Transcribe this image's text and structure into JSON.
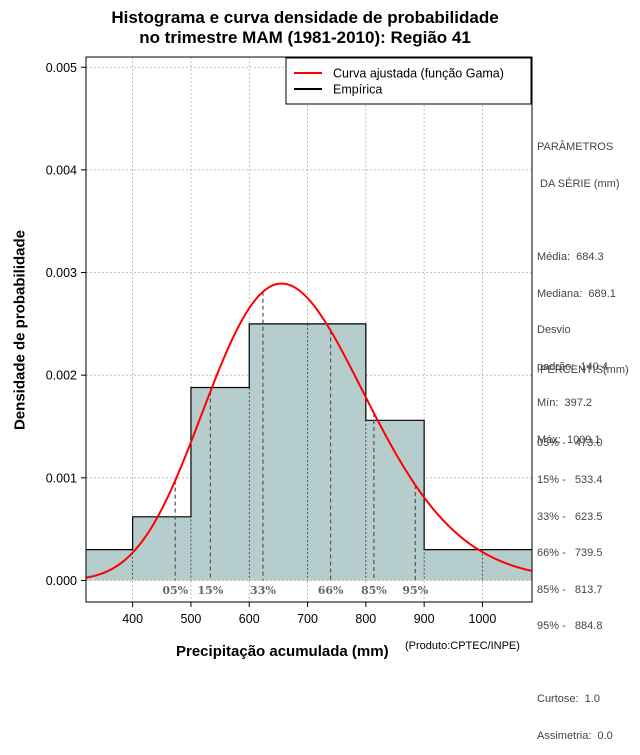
{
  "chart_data": {
    "type": "histogram",
    "title": [
      "Histograma e curva densidade de probabilidade",
      "no trimestre MAM (1981-2010): Região 41"
    ],
    "xlabel": "Precipitação acumulada (mm)",
    "ylabel": "Densidade de probabilidade",
    "credit": "(Produto:CPTEC/INPE)",
    "xlim": [
      320,
      1085
    ],
    "ylim": [
      -0.00021,
      0.0051
    ],
    "x_ticks": [
      400,
      500,
      600,
      700,
      800,
      900,
      1000
    ],
    "y_ticks": [
      0.0,
      0.001,
      0.002,
      0.003,
      0.004,
      0.005
    ],
    "y_tick_labels": [
      "0.000",
      "0.001",
      "0.002",
      "0.003",
      "0.004",
      "0.005"
    ],
    "bins": [
      {
        "x0": 300,
        "x1": 400,
        "density": 0.0003
      },
      {
        "x0": 400,
        "x1": 500,
        "density": 0.00062
      },
      {
        "x0": 500,
        "x1": 600,
        "density": 0.00188
      },
      {
        "x0": 600,
        "x1": 700,
        "density": 0.0025
      },
      {
        "x0": 700,
        "x1": 800,
        "density": 0.0025
      },
      {
        "x0": 800,
        "x1": 900,
        "density": 0.00156
      },
      {
        "x0": 900,
        "x1": 1000,
        "density": 0.0003
      },
      {
        "x0": 1000,
        "x1": 1100,
        "density": 0.0003
      }
    ],
    "gamma_fit": {
      "mean": 684.3,
      "sd": 140.4
    },
    "percentile_markers": [
      {
        "label": "05%",
        "x": 473.0
      },
      {
        "label": "15%",
        "x": 533.4
      },
      {
        "label": "33%",
        "x": 623.5
      },
      {
        "label": "66%",
        "x": 739.5
      },
      {
        "label": "85%",
        "x": 813.7
      },
      {
        "label": "95%",
        "x": 884.8
      }
    ],
    "legend": [
      {
        "label": "Curva ajustada (função Gama)",
        "color": "#ff0000"
      },
      {
        "label": "Empírica",
        "color": "#000000"
      }
    ],
    "bar_fill": "#b5cdcd",
    "curve_color": "#ff0000",
    "grid": true
  },
  "parametros": {
    "header": [
      "PARÂMETROS",
      " DA SÉRIE (mm)"
    ],
    "lines": [
      "Média:  684.3",
      "Mediana:  689.1",
      "Desvio",
      "padrão:  140.4",
      "Mín:  397.2",
      "Máx:  1009.1"
    ]
  },
  "percentis": {
    "header": " PERCENTIS(mm)",
    "lines": [
      "05% -   473.0",
      "15% -   533.4",
      "33% -   623.5",
      "66% -   739.5",
      "85% -   813.7",
      "95% -   884.8"
    ],
    "extra": [
      "Curtose:  1.0",
      "Assimetria:  0.0"
    ]
  }
}
